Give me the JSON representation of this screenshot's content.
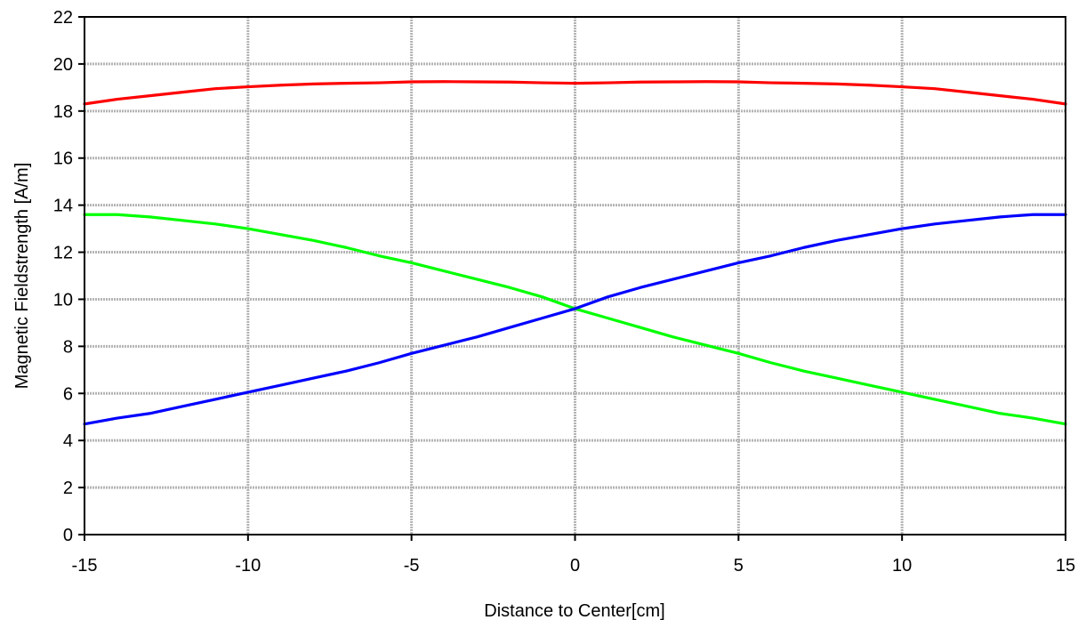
{
  "chart_data": {
    "type": "line",
    "title": "",
    "xlabel": "Distance to Center[cm]",
    "ylabel": "Magnetic Fieldstrength [A/m]",
    "xlim": [
      -15,
      15
    ],
    "ylim": [
      0,
      22
    ],
    "xticks": [
      -15,
      -10,
      -5,
      0,
      5,
      10,
      15
    ],
    "yticks": [
      0,
      2,
      4,
      6,
      8,
      10,
      12,
      14,
      16,
      18,
      20,
      22
    ],
    "grid": true,
    "legend": "none",
    "series": [
      {
        "color": "#ff0000",
        "x": [
          -15,
          -14,
          -13,
          -12,
          -11,
          -10,
          -9,
          -8,
          -7,
          -6,
          -5,
          -4,
          -3,
          -2,
          -1,
          0,
          1,
          2,
          3,
          4,
          5,
          6,
          7,
          8,
          9,
          10,
          11,
          12,
          13,
          14,
          15
        ],
        "y": [
          18.3,
          18.5,
          18.65,
          18.8,
          18.95,
          19.03,
          19.1,
          19.15,
          19.18,
          19.2,
          19.24,
          19.25,
          19.24,
          19.23,
          19.2,
          19.18,
          19.2,
          19.23,
          19.24,
          19.25,
          19.24,
          19.2,
          19.18,
          19.15,
          19.1,
          19.03,
          18.95,
          18.8,
          18.65,
          18.5,
          18.3
        ]
      },
      {
        "color": "#00ff00",
        "x": [
          -15,
          -14,
          -13,
          -12,
          -11,
          -10,
          -9,
          -8,
          -7,
          -6,
          -5,
          -4,
          -3,
          -2,
          -1,
          0,
          1,
          2,
          3,
          4,
          5,
          6,
          7,
          8,
          9,
          10,
          11,
          12,
          13,
          14,
          15
        ],
        "y": [
          13.6,
          13.6,
          13.5,
          13.35,
          13.2,
          13.0,
          12.75,
          12.5,
          12.2,
          11.85,
          11.55,
          11.2,
          10.85,
          10.5,
          10.1,
          9.6,
          9.2,
          8.8,
          8.4,
          8.05,
          7.7,
          7.3,
          6.95,
          6.65,
          6.35,
          6.05,
          5.75,
          5.45,
          5.15,
          4.95,
          4.7
        ]
      },
      {
        "color": "#0000ff",
        "x": [
          -15,
          -14,
          -13,
          -12,
          -11,
          -10,
          -9,
          -8,
          -7,
          -6,
          -5,
          -4,
          -3,
          -2,
          -1,
          0,
          1,
          2,
          3,
          4,
          5,
          6,
          7,
          8,
          9,
          10,
          11,
          12,
          13,
          14,
          15
        ],
        "y": [
          4.7,
          4.95,
          5.15,
          5.45,
          5.75,
          6.05,
          6.35,
          6.65,
          6.95,
          7.3,
          7.7,
          8.05,
          8.4,
          8.8,
          9.2,
          9.6,
          10.1,
          10.5,
          10.85,
          11.2,
          11.55,
          11.85,
          12.2,
          12.5,
          12.75,
          13.0,
          13.2,
          13.35,
          13.5,
          13.6,
          13.6
        ]
      }
    ]
  }
}
